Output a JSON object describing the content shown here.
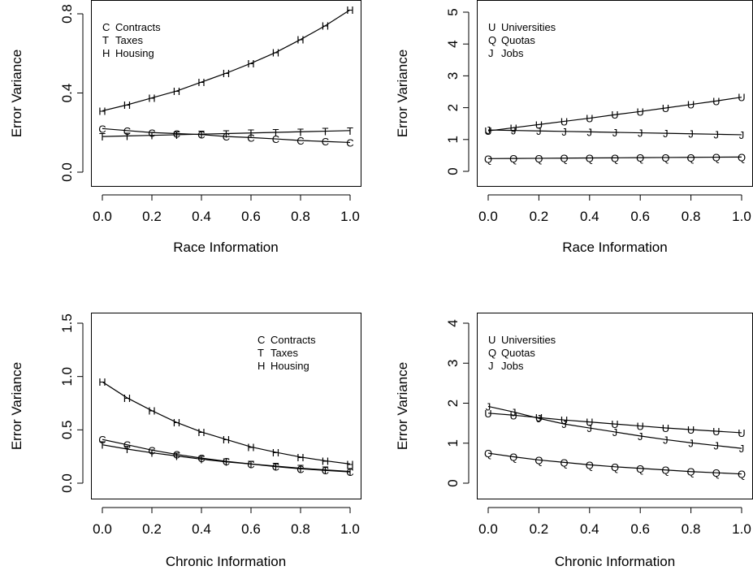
{
  "chart_data": [
    {
      "type": "line",
      "xlabel": "Race Information",
      "ylabel": "Error Variance",
      "xlim": [
        0,
        1
      ],
      "ylim": [
        0,
        1
      ],
      "xticks": [
        "0.0",
        "0.2",
        "0.4",
        "0.6",
        "0.8",
        "1.0"
      ],
      "yticks": [
        "0.0",
        "0.4",
        "0.8"
      ],
      "legend_position": "top-left",
      "x": [
        0,
        0.1,
        0.2,
        0.3,
        0.4,
        0.5,
        0.6,
        0.7,
        0.8,
        0.9,
        1.0
      ],
      "series": [
        {
          "name": "Contracts",
          "symbol": "C",
          "values": [
            0.22,
            0.21,
            0.2,
            0.195,
            0.19,
            0.18,
            0.175,
            0.168,
            0.16,
            0.155,
            0.15
          ]
        },
        {
          "name": "Taxes",
          "symbol": "T",
          "values": [
            0.18,
            0.183,
            0.186,
            0.189,
            0.192,
            0.195,
            0.198,
            0.201,
            0.204,
            0.207,
            0.21
          ]
        },
        {
          "name": "Housing",
          "symbol": "H",
          "values": [
            0.31,
            0.34,
            0.375,
            0.41,
            0.455,
            0.5,
            0.55,
            0.605,
            0.67,
            0.74,
            0.82
          ]
        }
      ]
    },
    {
      "type": "line",
      "xlabel": "Race Information",
      "ylabel": "Error Variance",
      "xlim": [
        0,
        1
      ],
      "ylim": [
        0,
        5
      ],
      "xticks": [
        "0.0",
        "0.2",
        "0.4",
        "0.6",
        "0.8",
        "1.0"
      ],
      "yticks": [
        "0",
        "1",
        "2",
        "3",
        "4",
        "5"
      ],
      "legend_position": "top-left",
      "x": [
        0,
        0.1,
        0.2,
        0.3,
        0.4,
        0.5,
        0.6,
        0.7,
        0.8,
        0.9,
        1.0
      ],
      "series": [
        {
          "name": "Universities",
          "symbol": "U",
          "values": [
            1.27,
            1.37,
            1.47,
            1.57,
            1.67,
            1.78,
            1.88,
            1.99,
            2.1,
            2.21,
            2.33
          ]
        },
        {
          "name": "Quotas",
          "symbol": "Q",
          "values": [
            0.4,
            0.405,
            0.41,
            0.415,
            0.42,
            0.425,
            0.43,
            0.435,
            0.44,
            0.445,
            0.45
          ]
        },
        {
          "name": "Jobs",
          "symbol": "J",
          "values": [
            1.3,
            1.285,
            1.27,
            1.255,
            1.24,
            1.225,
            1.21,
            1.195,
            1.18,
            1.165,
            1.15
          ]
        }
      ]
    },
    {
      "type": "line",
      "xlabel": "Chronic Information",
      "ylabel": "Error Variance",
      "xlim": [
        0,
        1
      ],
      "ylim": [
        0,
        1.5
      ],
      "xticks": [
        "0.0",
        "0.2",
        "0.4",
        "0.6",
        "0.8",
        "1.0"
      ],
      "yticks": [
        "0.0",
        "0.5",
        "1.0",
        "1.5"
      ],
      "legend_position": "top-right",
      "x": [
        0,
        0.1,
        0.2,
        0.3,
        0.4,
        0.5,
        0.6,
        0.7,
        0.8,
        0.9,
        1.0
      ],
      "series": [
        {
          "name": "Contracts",
          "symbol": "C",
          "values": [
            0.41,
            0.36,
            0.31,
            0.27,
            0.235,
            0.205,
            0.18,
            0.155,
            0.135,
            0.12,
            0.105
          ]
        },
        {
          "name": "Taxes",
          "symbol": "T",
          "values": [
            0.36,
            0.32,
            0.285,
            0.255,
            0.225,
            0.2,
            0.18,
            0.16,
            0.14,
            0.125,
            0.11
          ]
        },
        {
          "name": "Housing",
          "symbol": "H",
          "values": [
            0.95,
            0.8,
            0.68,
            0.57,
            0.48,
            0.41,
            0.34,
            0.29,
            0.245,
            0.21,
            0.18
          ]
        }
      ]
    },
    {
      "type": "line",
      "xlabel": "Chronic Information",
      "ylabel": "Error Variance",
      "xlim": [
        0,
        1
      ],
      "ylim": [
        0,
        4
      ],
      "xticks": [
        "0.0",
        "0.2",
        "0.4",
        "0.6",
        "0.8",
        "1.0"
      ],
      "yticks": [
        "0",
        "1",
        "2",
        "3",
        "4"
      ],
      "legend_position": "top-left",
      "x": [
        0,
        0.1,
        0.2,
        0.3,
        0.4,
        0.5,
        0.6,
        0.7,
        0.8,
        0.9,
        1.0
      ],
      "series": [
        {
          "name": "Universities",
          "symbol": "U",
          "values": [
            1.75,
            1.7,
            1.64,
            1.58,
            1.53,
            1.48,
            1.43,
            1.38,
            1.34,
            1.3,
            1.26
          ]
        },
        {
          "name": "Quotas",
          "symbol": "Q",
          "values": [
            0.75,
            0.66,
            0.58,
            0.52,
            0.46,
            0.41,
            0.37,
            0.33,
            0.29,
            0.26,
            0.23
          ]
        },
        {
          "name": "Jobs",
          "symbol": "J",
          "values": [
            1.92,
            1.78,
            1.62,
            1.48,
            1.38,
            1.28,
            1.18,
            1.09,
            1.01,
            0.94,
            0.87
          ]
        }
      ]
    }
  ]
}
